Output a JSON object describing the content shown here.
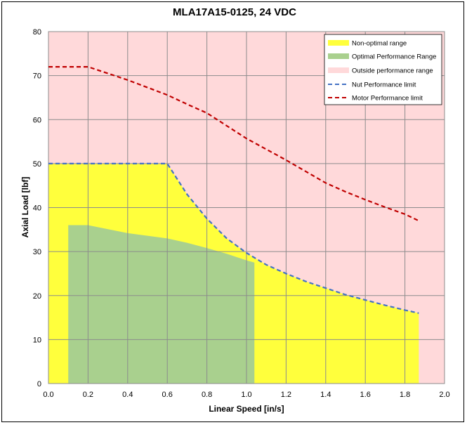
{
  "chart_data": {
    "type": "area",
    "title": "MLA17A15-0125, 24 VDC",
    "xlabel": "Linear Speed [in/s]",
    "ylabel": "Axial Load [lbf]",
    "xlim": [
      0,
      2.0
    ],
    "ylim": [
      0,
      80
    ],
    "x_ticks": [
      "0.0",
      "0.2",
      "0.4",
      "0.6",
      "0.8",
      "1.0",
      "1.2",
      "1.4",
      "1.6",
      "1.8",
      "2.0"
    ],
    "y_ticks": [
      "0",
      "10",
      "20",
      "30",
      "40",
      "50",
      "60",
      "70",
      "80"
    ],
    "grid": true,
    "legend_position": "top-right",
    "colors": {
      "background": "#ffd9da",
      "non_optimal": "#ffff3c",
      "optimal": "#a9d08e",
      "grid": "#8c8c8c",
      "nut_line": "#4472c4",
      "motor_line": "#c00000"
    },
    "series": [
      {
        "name": "Non-optimal range",
        "kind": "area",
        "x": [
          0,
          0.2,
          0.6,
          0.7,
          0.8,
          0.9,
          1.0,
          1.1,
          1.2,
          1.3,
          1.4,
          1.5,
          1.6,
          1.7,
          1.8,
          1.87
        ],
        "y": [
          50,
          50,
          50,
          43,
          37.5,
          33,
          29.7,
          27,
          25,
          23.2,
          21.7,
          20.2,
          19,
          17.8,
          16.7,
          16
        ]
      },
      {
        "name": "Optimal Performance Range",
        "kind": "area",
        "x": [
          0.1,
          0.2,
          0.4,
          0.6,
          0.7,
          0.8,
          0.9,
          1.0,
          1.04
        ],
        "y": [
          36,
          36,
          34.2,
          33,
          32,
          30.8,
          29.5,
          28,
          27.5
        ]
      },
      {
        "name": "Outside performance range",
        "kind": "background"
      },
      {
        "name": "Nut Performance limit",
        "kind": "line",
        "x": [
          0,
          0.2,
          0.6,
          0.7,
          0.8,
          0.9,
          1.0,
          1.1,
          1.2,
          1.3,
          1.4,
          1.5,
          1.6,
          1.7,
          1.8,
          1.87
        ],
        "y": [
          50,
          50,
          50,
          43,
          37.5,
          33,
          29.7,
          27,
          25,
          23.2,
          21.7,
          20.2,
          19,
          17.8,
          16.7,
          16
        ]
      },
      {
        "name": "Motor Performance limit",
        "kind": "line",
        "x": [
          0,
          0.2,
          0.4,
          0.6,
          0.7,
          0.8,
          1.0,
          1.2,
          1.4,
          1.5,
          1.6,
          1.7,
          1.8,
          1.87
        ],
        "y": [
          72,
          72,
          69,
          65.6,
          63.5,
          61.5,
          55.7,
          50.8,
          45.6,
          43.6,
          41.8,
          40.1,
          38.5,
          37
        ]
      }
    ]
  }
}
